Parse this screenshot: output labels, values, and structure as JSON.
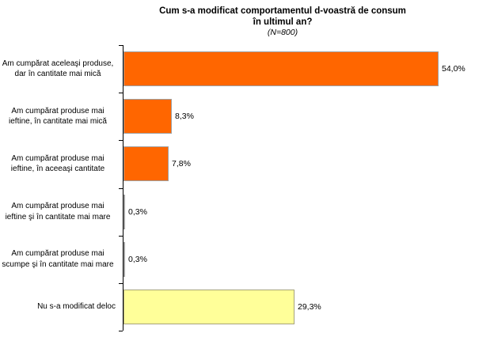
{
  "title": {
    "line1": "Cum s-a modificat comportamentul d-voastră de consum",
    "line2": "în ultimul an?",
    "subtitle": "(N=800)"
  },
  "chart_data": {
    "type": "bar",
    "orientation": "horizontal",
    "title": "Cum s-a modificat comportamentul d-voastră de consum în ultimul an?",
    "subtitle": "(N=800)",
    "categories": [
      "Am cumpărat aceleaşi produse, dar în cantitate mai mică",
      "Am cumpărat produse mai ieftine, în cantitate mai mică",
      "Am cumpărat produse mai ieftine, în aceeaşi cantitate",
      "Am cumpărat produse mai ieftine şi în cantitate mai mare",
      "Am cumpărat produse mai scumpe şi în cantitate mai mare",
      "Nu s-a modificat deloc"
    ],
    "values": [
      54.0,
      8.3,
      7.8,
      0.3,
      0.3,
      29.3
    ],
    "value_labels": [
      "54,0%",
      "8,3%",
      "7,8%",
      "0,3%",
      "0,3%",
      "29,3%"
    ],
    "bar_colors": [
      "#ff6600",
      "#ff6600",
      "#ff6600",
      "#ff6600",
      "#ff6600",
      "#ffff99"
    ],
    "bar_border_colors": [
      "#a0a0a0",
      "#a0a0a0",
      "#a0a0a0",
      "#a0a0a0",
      "#a0a0a0",
      "#a6a37c"
    ],
    "xlabel": "",
    "ylabel": "",
    "xlim": [
      0,
      60
    ],
    "grid": false,
    "legend": false,
    "axis_color": "#000000",
    "background_color": "#ffffff"
  }
}
